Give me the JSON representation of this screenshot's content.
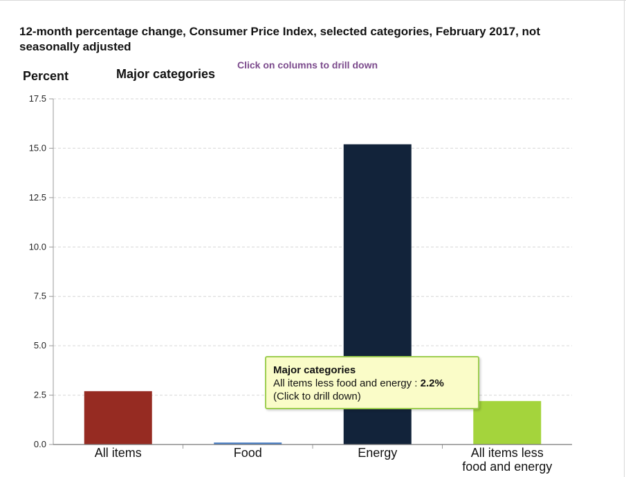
{
  "chart_data": {
    "type": "bar",
    "title": "12-month percentage change, Consumer Price Index, selected categories, February 2017, not seasonally adjusted",
    "ylabel": "Percent",
    "subtitle": "Major categories",
    "hint": "Click on columns to drill down",
    "categories": [
      "All items",
      "Food",
      "Energy",
      "All items less food and energy"
    ],
    "category_lines": [
      [
        "All items"
      ],
      [
        "Food"
      ],
      [
        "Energy"
      ],
      [
        "All items less",
        "food and energy"
      ]
    ],
    "values": [
      2.7,
      0.1,
      15.2,
      2.2
    ],
    "colors": [
      "#962b22",
      "#4a7fc4",
      "#12233a",
      "#a4d43c"
    ],
    "ylim": [
      0,
      17.5
    ],
    "yticks": [
      0,
      2.5,
      5,
      7.5,
      10,
      12.5,
      15,
      17.5
    ],
    "ytick_labels": [
      "0.0",
      "2.5",
      "5.0",
      "7.5",
      "10.0",
      "12.5",
      "15.0",
      "17.5"
    ],
    "grid": true,
    "tooltip": {
      "title": "Major categories",
      "label": "All items less food and energy",
      "separator": " : ",
      "value": "2.2%",
      "action": "(Click to drill down)"
    }
  }
}
